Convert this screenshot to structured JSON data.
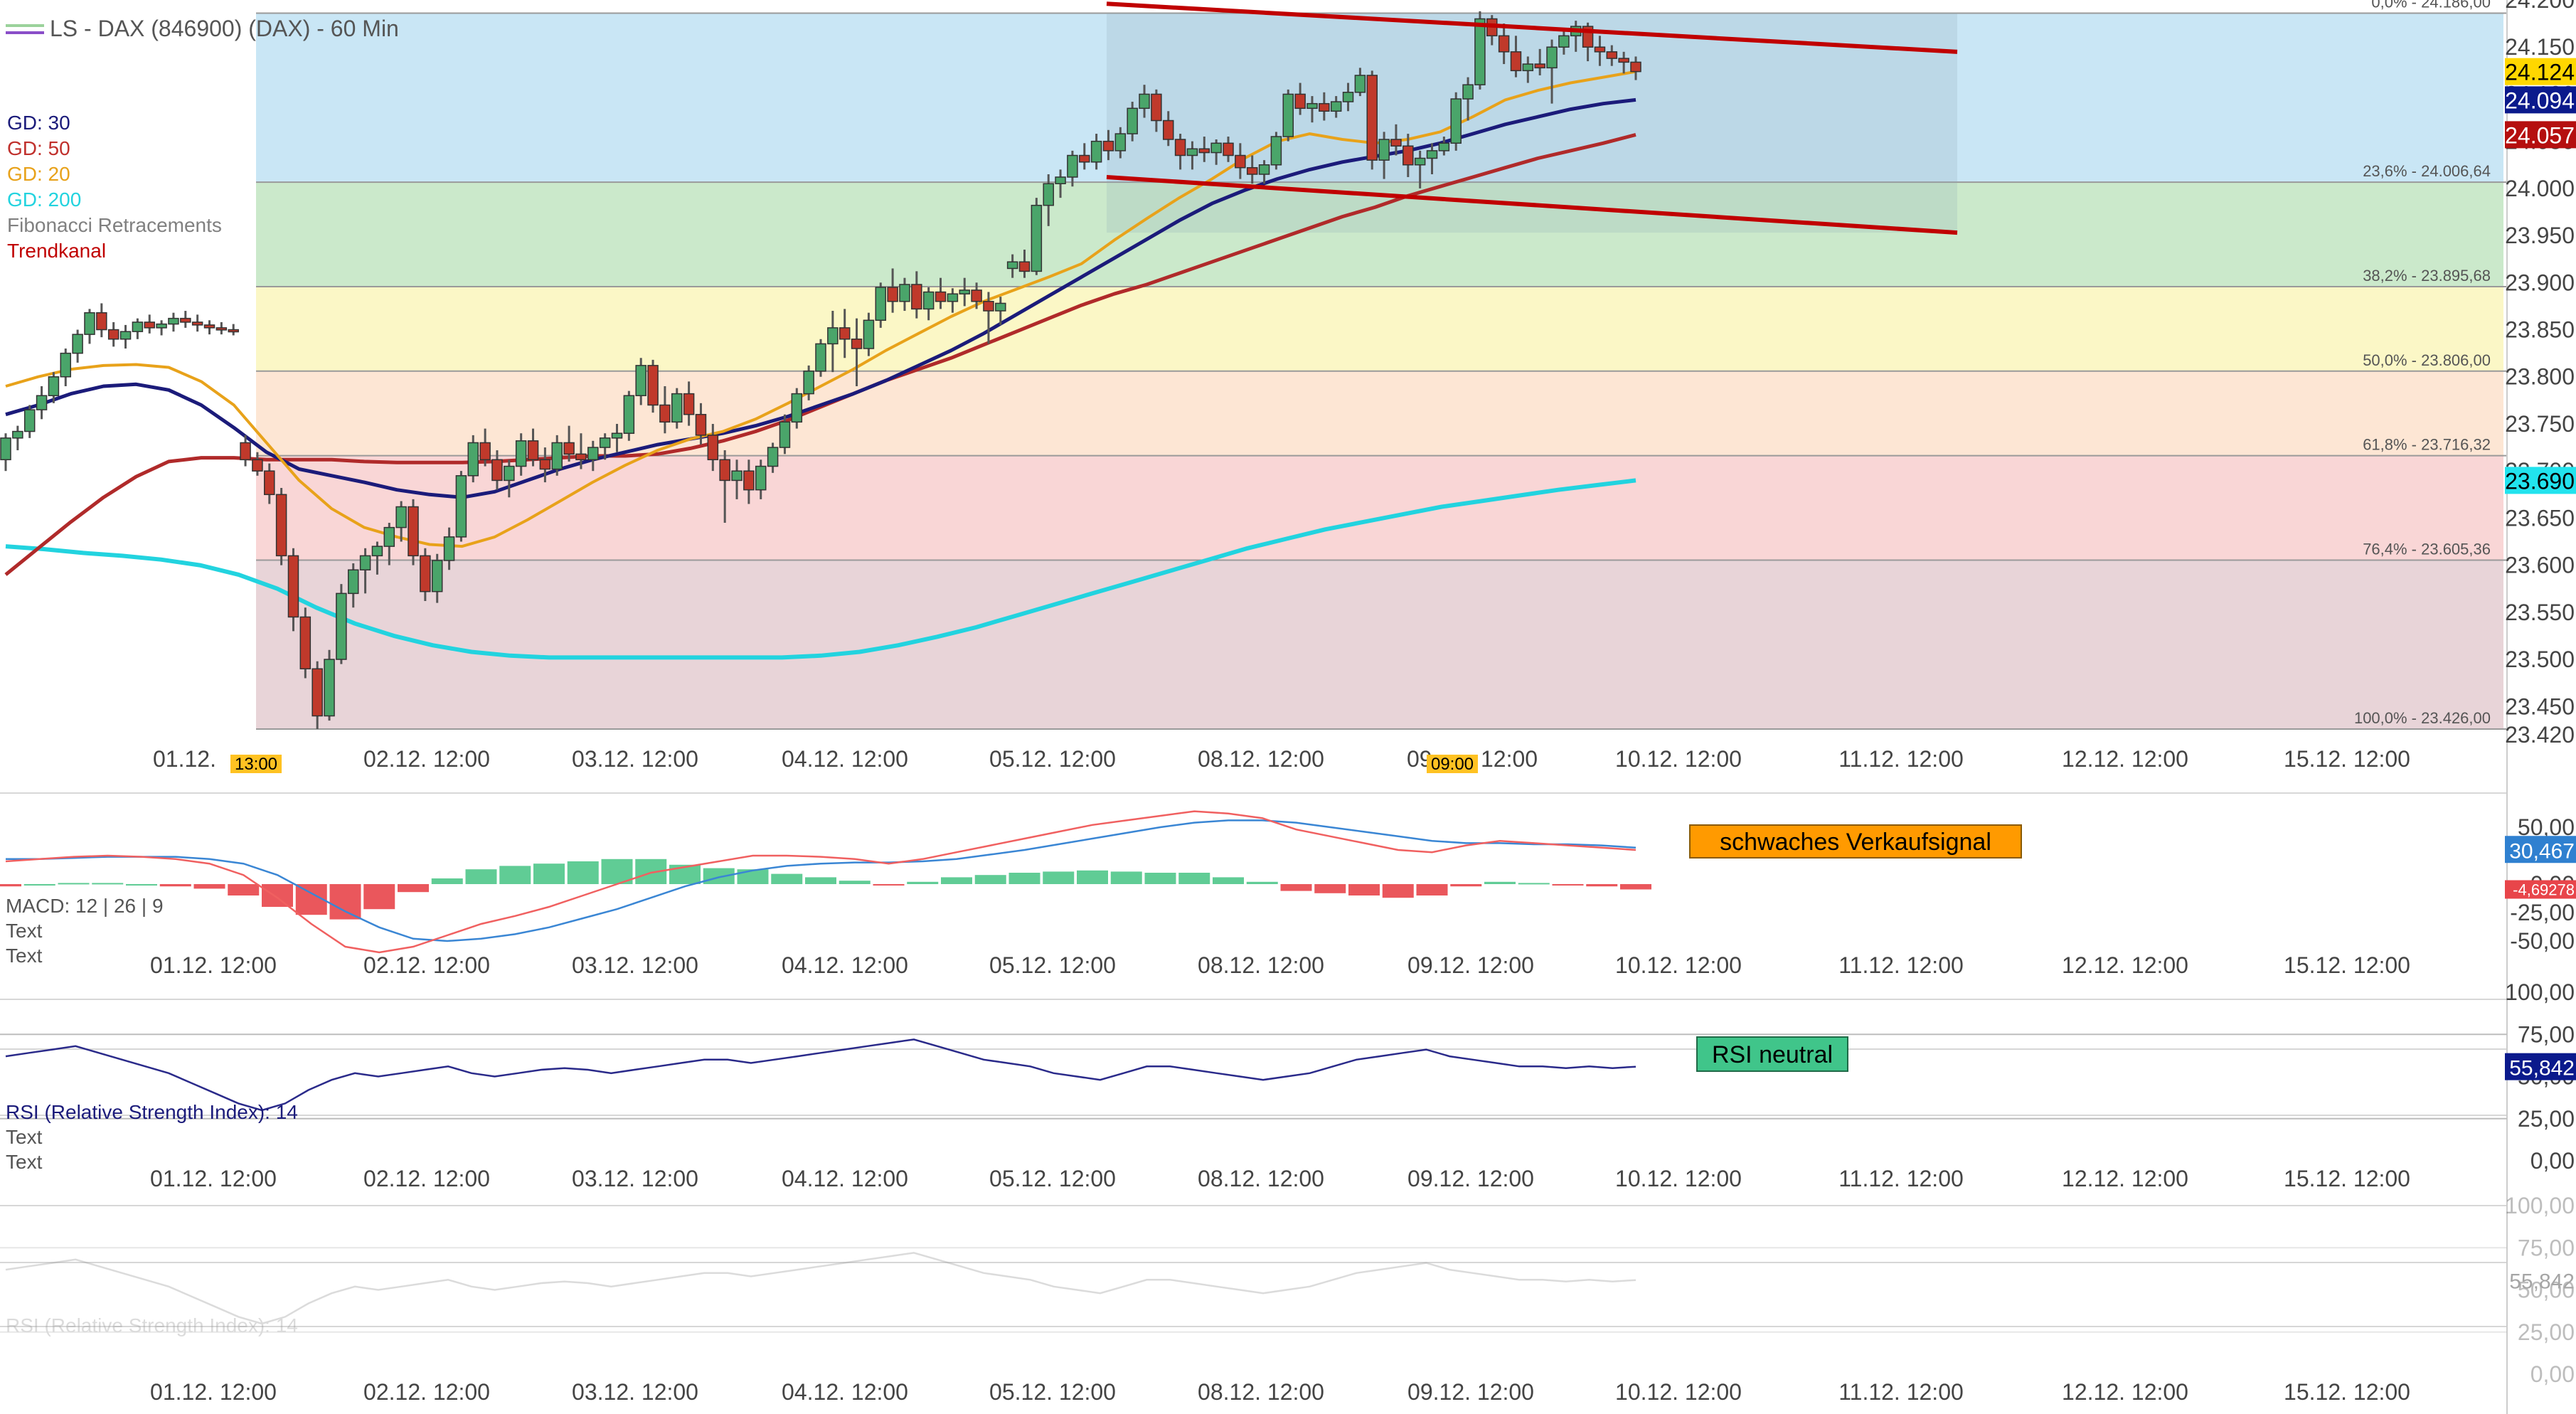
{
  "window": {
    "title": "LS - DAX (846900) (DAX) - 60 Min",
    "title_marker_colors": [
      "#9bd29b",
      "#8a4ec8"
    ]
  },
  "legend": [
    {
      "label": "GD: 30",
      "color": "#1b1b7a"
    },
    {
      "label": "GD: 50",
      "color": "#c0302c"
    },
    {
      "label": "GD: 20",
      "color": "#e8a21a"
    },
    {
      "label": "GD: 200",
      "color": "#22d3df"
    },
    {
      "label": "Fibonacci Retracements",
      "color": "#808080"
    },
    {
      "label": "Trendkanal",
      "color": "#c00000"
    }
  ],
  "fib_levels": [
    {
      "label": "0,0% - 24.186,00",
      "value": 24186.0,
      "fill": "#c9e6f5"
    },
    {
      "label": "23,6% - 24.006,64",
      "value": 24006.64,
      "fill": "#cbe9cb"
    },
    {
      "label": "38,2% - 23.895,68",
      "value": 23895.68,
      "fill": "#fbf7c6"
    },
    {
      "label": "50,0% - 23.806,00",
      "value": 23806.0,
      "fill": "#fde6d4"
    },
    {
      "label": "61,8% - 23.716,32",
      "value": 23716.32,
      "fill": "#f9d6d6"
    },
    {
      "label": "76,4% - 23.605,36",
      "value": 23605.36,
      "fill": "#e8d4d8"
    },
    {
      "label": "100,0% - 23.426,00",
      "value": 23426.0,
      "fill": ""
    }
  ],
  "price_axis": {
    "ticks": [
      "24.200",
      "24.150",
      "24.100",
      "24.050",
      "24.000",
      "23.950",
      "23.900",
      "23.850",
      "23.800",
      "23.750",
      "23.700",
      "23.650",
      "23.600",
      "23.550",
      "23.500",
      "23.450",
      "23.420"
    ],
    "badges": [
      {
        "label": "24.124",
        "value": 24124,
        "bg": "#ffd700",
        "fg": "#000000"
      },
      {
        "label": "24.094",
        "value": 24094,
        "bg": "#0b1a8c",
        "fg": "#ffffff"
      },
      {
        "label": "24.057",
        "value": 24057,
        "bg": "#b50f0f",
        "fg": "#ffffff"
      },
      {
        "label": "23.690",
        "value": 23690,
        "bg": "#22e3ee",
        "fg": "#000000"
      }
    ]
  },
  "time_axis": [
    "01.12. 12:00",
    "02.12. 12:00",
    "03.12. 12:00",
    "04.12. 12:00",
    "05.12. 12:00",
    "08.12. 12:00",
    "09.12. 12:00",
    "10.12. 12:00",
    "11.12. 12:00",
    "12.12. 12:00",
    "15.12. 12:00"
  ],
  "main_time_axis_override": {
    "first": "01.12. ",
    "first_highlight": "13:00",
    "seventh_highlight": "09:00"
  },
  "macd": {
    "label": "MACD: 12 | 26 | 9",
    "texts": [
      "Text",
      "Text"
    ],
    "ticks": [
      "50,00",
      "0,00",
      "-25,00",
      "-50,00"
    ],
    "badge_value": "30,467",
    "badge_hist": "-4,69278",
    "signal_box": "schwaches Verkaufsignal"
  },
  "rsi": {
    "label": "RSI (Relative Strength Index): 14",
    "texts": [
      "Text",
      "Text"
    ],
    "ticks": [
      "100,00",
      "75,00",
      "50,00",
      "25,00",
      "0,00"
    ],
    "badge": "55,842",
    "signal_box": "RSI neutral"
  },
  "rsi_ghost": {
    "label": "RSI (Relative Strength Index): 14",
    "ticks": [
      "100,00",
      "75,00",
      "50,00",
      "25,00",
      "0,00"
    ],
    "badge": "55,842"
  },
  "chart_data": {
    "type": "candlestick",
    "instrument": "LS - DAX (846900) (DAX)",
    "interval": "60 Min",
    "y_range": [
      23420,
      24200
    ],
    "candles_ohlc": [
      [
        23712,
        23740,
        23700,
        23735
      ],
      [
        23735,
        23748,
        23722,
        23742
      ],
      [
        23742,
        23770,
        23735,
        23765
      ],
      [
        23765,
        23790,
        23755,
        23780
      ],
      [
        23780,
        23805,
        23772,
        23800
      ],
      [
        23800,
        23830,
        23790,
        23825
      ],
      [
        23825,
        23850,
        23815,
        23845
      ],
      [
        23845,
        23872,
        23835,
        23868
      ],
      [
        23868,
        23878,
        23842,
        23850
      ],
      [
        23850,
        23858,
        23832,
        23840
      ],
      [
        23840,
        23855,
        23830,
        23848
      ],
      [
        23848,
        23862,
        23840,
        23858
      ],
      [
        23858,
        23866,
        23846,
        23852
      ],
      [
        23852,
        23860,
        23844,
        23856
      ],
      [
        23856,
        23868,
        23848,
        23862
      ],
      [
        23862,
        23870,
        23852,
        23858
      ],
      [
        23858,
        23866,
        23848,
        23855
      ],
      [
        23855,
        23860,
        23845,
        23852
      ],
      [
        23852,
        23858,
        23845,
        23850
      ],
      [
        23850,
        23856,
        23844,
        23848
      ],
      [
        23730,
        23738,
        23705,
        23712
      ],
      [
        23712,
        23720,
        23695,
        23700
      ],
      [
        23700,
        23708,
        23665,
        23675
      ],
      [
        23675,
        23682,
        23600,
        23610
      ],
      [
        23610,
        23618,
        23530,
        23545
      ],
      [
        23545,
        23555,
        23480,
        23490
      ],
      [
        23490,
        23498,
        23426,
        23440
      ],
      [
        23440,
        23510,
        23435,
        23500
      ],
      [
        23500,
        23580,
        23495,
        23570
      ],
      [
        23570,
        23602,
        23555,
        23595
      ],
      [
        23595,
        23618,
        23570,
        23610
      ],
      [
        23610,
        23625,
        23590,
        23620
      ],
      [
        23620,
        23645,
        23600,
        23640
      ],
      [
        23640,
        23668,
        23625,
        23662
      ],
      [
        23662,
        23670,
        23600,
        23610
      ],
      [
        23610,
        23618,
        23562,
        23572
      ],
      [
        23572,
        23612,
        23560,
        23605
      ],
      [
        23605,
        23640,
        23595,
        23630
      ],
      [
        23630,
        23700,
        23625,
        23695
      ],
      [
        23695,
        23738,
        23688,
        23730
      ],
      [
        23730,
        23745,
        23705,
        23712
      ],
      [
        23712,
        23722,
        23680,
        23690
      ],
      [
        23690,
        23712,
        23672,
        23705
      ],
      [
        23705,
        23740,
        23695,
        23732
      ],
      [
        23732,
        23745,
        23705,
        23712
      ],
      [
        23712,
        23725,
        23688,
        23702
      ],
      [
        23702,
        23738,
        23695,
        23730
      ],
      [
        23730,
        23748,
        23710,
        23718
      ],
      [
        23718,
        23740,
        23702,
        23712
      ],
      [
        23712,
        23732,
        23700,
        23725
      ],
      [
        23725,
        23740,
        23712,
        23735
      ],
      [
        23735,
        23750,
        23720,
        23740
      ],
      [
        23740,
        23785,
        23732,
        23780
      ],
      [
        23780,
        23820,
        23770,
        23812
      ],
      [
        23812,
        23818,
        23762,
        23770
      ],
      [
        23770,
        23790,
        23740,
        23752
      ],
      [
        23752,
        23788,
        23745,
        23782
      ],
      [
        23782,
        23795,
        23748,
        23760
      ],
      [
        23760,
        23772,
        23728,
        23738
      ],
      [
        23738,
        23750,
        23700,
        23712
      ],
      [
        23712,
        23722,
        23645,
        23690
      ],
      [
        23690,
        23712,
        23670,
        23700
      ],
      [
        23700,
        23712,
        23665,
        23680
      ],
      [
        23680,
        23712,
        23670,
        23705
      ],
      [
        23705,
        23730,
        23698,
        23725
      ],
      [
        23725,
        23760,
        23718,
        23752
      ],
      [
        23752,
        23788,
        23745,
        23782
      ],
      [
        23782,
        23812,
        23775,
        23806
      ],
      [
        23806,
        23840,
        23800,
        23835
      ],
      [
        23835,
        23870,
        23805,
        23852
      ],
      [
        23852,
        23872,
        23820,
        23840
      ],
      [
        23840,
        23862,
        23790,
        23830
      ],
      [
        23830,
        23868,
        23822,
        23860
      ],
      [
        23860,
        23900,
        23852,
        23895
      ],
      [
        23895,
        23915,
        23868,
        23880
      ],
      [
        23880,
        23905,
        23870,
        23898
      ],
      [
        23898,
        23912,
        23862,
        23872
      ],
      [
        23872,
        23895,
        23860,
        23890
      ],
      [
        23890,
        23905,
        23872,
        23880
      ],
      [
        23880,
        23894,
        23868,
        23888
      ],
      [
        23888,
        23905,
        23875,
        23892
      ],
      [
        23892,
        23900,
        23872,
        23880
      ],
      [
        23880,
        23890,
        23835,
        23870
      ],
      [
        23870,
        23885,
        23855,
        23878
      ],
      [
        23915,
        23930,
        23905,
        23922
      ],
      [
        23922,
        23935,
        23905,
        23912
      ],
      [
        23912,
        23990,
        23908,
        23982
      ],
      [
        23982,
        24015,
        23960,
        24005
      ],
      [
        24005,
        24020,
        23990,
        24012
      ],
      [
        24012,
        24040,
        24002,
        24035
      ],
      [
        24035,
        24048,
        24020,
        24028
      ],
      [
        24028,
        24058,
        24020,
        24050
      ],
      [
        24050,
        24062,
        24030,
        24040
      ],
      [
        24040,
        24065,
        24032,
        24058
      ],
      [
        24058,
        24092,
        24050,
        24085
      ],
      [
        24085,
        24110,
        24075,
        24100
      ],
      [
        24100,
        24105,
        24060,
        24072
      ],
      [
        24072,
        24082,
        24045,
        24052
      ],
      [
        24052,
        24058,
        24020,
        24035
      ],
      [
        24035,
        24050,
        24020,
        24042
      ],
      [
        24042,
        24055,
        24028,
        24038
      ],
      [
        24038,
        24052,
        24025,
        24048
      ],
      [
        24048,
        24055,
        24028,
        24035
      ],
      [
        24035,
        24048,
        24010,
        24022
      ],
      [
        24022,
        24035,
        24005,
        24015
      ],
      [
        24015,
        24030,
        24005,
        24025
      ],
      [
        24025,
        24060,
        24020,
        24055
      ],
      [
        24055,
        24105,
        24050,
        24100
      ],
      [
        24100,
        24112,
        24078,
        24085
      ],
      [
        24085,
        24098,
        24070,
        24090
      ],
      [
        24090,
        24102,
        24072,
        24082
      ],
      [
        24082,
        24098,
        24075,
        24092
      ],
      [
        24092,
        24112,
        24082,
        24102
      ],
      [
        24102,
        24128,
        24098,
        24120
      ],
      [
        24120,
        24125,
        24020,
        24030
      ],
      [
        24030,
        24060,
        24010,
        24052
      ],
      [
        24052,
        24068,
        24035,
        24045
      ],
      [
        24045,
        24058,
        24012,
        24025
      ],
      [
        24025,
        24040,
        24000,
        24032
      ],
      [
        24032,
        24048,
        24015,
        24040
      ],
      [
        24040,
        24055,
        24035,
        24048
      ],
      [
        24048,
        24102,
        24040,
        24095
      ],
      [
        24095,
        24118,
        24072,
        24110
      ],
      [
        24110,
        24188,
        24105,
        24180
      ],
      [
        24180,
        24184,
        24152,
        24162
      ],
      [
        24162,
        24175,
        24132,
        24145
      ],
      [
        24145,
        24162,
        24118,
        24125
      ],
      [
        24125,
        24140,
        24112,
        24132
      ],
      [
        24132,
        24148,
        24120,
        24128
      ],
      [
        24128,
        24158,
        24090,
        24150
      ],
      [
        24150,
        24170,
        24142,
        24162
      ],
      [
        24162,
        24178,
        24145,
        24172
      ],
      [
        24172,
        24176,
        24135,
        24150
      ],
      [
        24150,
        24162,
        24130,
        24145
      ],
      [
        24145,
        24152,
        24130,
        24138
      ],
      [
        24138,
        24145,
        24122,
        24134
      ],
      [
        24134,
        24140,
        24115,
        24124
      ]
    ],
    "moving_averages": {
      "GD 20": [
        23790,
        23800,
        23808,
        23812,
        23813,
        23810,
        23795,
        23770,
        23730,
        23690,
        23660,
        23640,
        23630,
        23622,
        23620,
        23630,
        23648,
        23668,
        23688,
        23706,
        23722,
        23734,
        23742,
        23755,
        23772,
        23790,
        23808,
        23828,
        23846,
        23864,
        23880,
        23893,
        23906,
        23920,
        23945,
        23968,
        23990,
        24010,
        24032,
        24050,
        24058,
        24052,
        24048,
        24052,
        24060,
        24076,
        24094,
        24104,
        24112,
        24118,
        24124
      ],
      "GD 30": [
        23760,
        23770,
        23782,
        23790,
        23792,
        23786,
        23770,
        23746,
        23720,
        23702,
        23695,
        23688,
        23680,
        23675,
        23672,
        23678,
        23690,
        23702,
        23712,
        23720,
        23728,
        23734,
        23740,
        23748,
        23758,
        23770,
        23782,
        23796,
        23812,
        23828,
        23846,
        23866,
        23886,
        23906,
        23926,
        23946,
        23966,
        23984,
        23998,
        24010,
        24020,
        24028,
        24034,
        24040,
        24048,
        24058,
        24068,
        24076,
        24084,
        24090,
        24094
      ],
      "GD 50": [
        23590,
        23618,
        23646,
        23672,
        23694,
        23710,
        23714,
        23714,
        23712,
        23712,
        23712,
        23710,
        23709,
        23709,
        23709,
        23710,
        23712,
        23714,
        23716,
        23716,
        23718,
        23724,
        23732,
        23742,
        23754,
        23768,
        23782,
        23796,
        23808,
        23820,
        23834,
        23848,
        23862,
        23876,
        23888,
        23898,
        23910,
        23922,
        23934,
        23946,
        23958,
        23970,
        23980,
        23992,
        24002,
        24012,
        24022,
        24032,
        24040,
        24048,
        24057
      ],
      "GD 200": [
        23620,
        23617,
        23613,
        23610,
        23606,
        23600,
        23590,
        23575,
        23555,
        23538,
        23525,
        23515,
        23508,
        23504,
        23502,
        23502,
        23502,
        23502,
        23502,
        23502,
        23502,
        23504,
        23508,
        23515,
        23524,
        23534,
        23546,
        23558,
        23570,
        23582,
        23594,
        23606,
        23618,
        23628,
        23638,
        23646,
        23654,
        23662,
        23668,
        23674,
        23680,
        23685,
        23690
      ]
    },
    "trend_channel": {
      "upper": [
        [
          0.0,
          24196
        ],
        [
          1.0,
          24145
        ]
      ],
      "lower": [
        [
          0.0,
          24012
        ],
        [
          1.0,
          23953
        ]
      ]
    },
    "last_values": {
      "GD 20": 24124,
      "GD 30": 24094,
      "GD 50": 24057,
      "GD 200": 23690
    },
    "macd_series": {
      "macd": [
        20,
        22,
        24,
        25,
        24,
        22,
        18,
        8,
        -12,
        -35,
        -55,
        -60,
        -55,
        -45,
        -35,
        -28,
        -20,
        -10,
        0,
        10,
        15,
        20,
        25,
        25,
        24,
        22,
        18,
        22,
        28,
        34,
        40,
        46,
        52,
        56,
        60,
        64,
        62,
        58,
        48,
        42,
        36,
        30,
        28,
        34,
        38,
        36,
        34,
        32,
        30
      ],
      "signal": [
        22,
        22,
        23,
        24,
        24,
        24,
        22,
        18,
        8,
        -8,
        -24,
        -38,
        -48,
        -50,
        -48,
        -44,
        -38,
        -30,
        -22,
        -12,
        -2,
        6,
        12,
        16,
        18,
        19,
        19,
        20,
        22,
        26,
        30,
        35,
        40,
        45,
        50,
        54,
        56,
        56,
        54,
        50,
        46,
        42,
        38,
        36,
        36,
        35,
        35,
        34,
        32
      ],
      "histogram": [
        -2,
        0,
        1,
        1,
        0,
        -2,
        -4,
        -10,
        -20,
        -27,
        -31,
        -22,
        -7,
        5,
        13,
        16,
        18,
        20,
        22,
        22,
        17,
        14,
        13,
        9,
        6,
        3,
        -1,
        2,
        6,
        8,
        10,
        11,
        12,
        11,
        10,
        10,
        6,
        2,
        -6,
        -8,
        -10,
        -12,
        -10,
        -2,
        2,
        1,
        -1,
        -2,
        -4.69
      ]
    },
    "rsi_series": [
      62,
      64,
      66,
      68,
      64,
      60,
      56,
      52,
      46,
      40,
      34,
      30,
      34,
      42,
      48,
      52,
      50,
      52,
      54,
      56,
      52,
      50,
      52,
      54,
      55,
      54,
      52,
      54,
      56,
      58,
      60,
      60,
      58,
      60,
      62,
      64,
      66,
      68,
      70,
      72,
      68,
      64,
      60,
      58,
      56,
      52,
      50,
      48,
      52,
      56,
      56,
      54,
      52,
      50,
      48,
      50,
      52,
      56,
      60,
      62,
      64,
      66,
      62,
      60,
      58,
      56,
      56,
      55,
      56,
      55,
      55.842
    ]
  }
}
